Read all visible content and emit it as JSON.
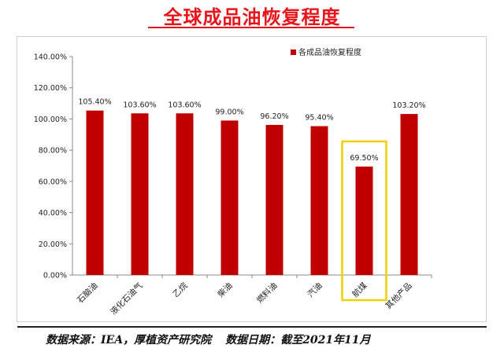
{
  "page_title": "全球成品油恢复程度",
  "footer": {
    "source": "数据来源：IEA，厚植资产研究院",
    "date": "数据日期：截至2021年11月"
  },
  "chart_data": {
    "type": "bar",
    "title": "",
    "xlabel": "",
    "ylabel": "",
    "ylim": [
      0,
      1.4
    ],
    "y_ticks": [
      "0.00%",
      "20.00%",
      "40.00%",
      "60.00%",
      "80.00%",
      "100.00%",
      "120.00%",
      "140.00%"
    ],
    "grid": false,
    "legend": {
      "position": "top-right"
    },
    "categories": [
      "石脑油",
      "液化石油气",
      "乙烷",
      "柴油",
      "燃料油",
      "汽油",
      "航煤",
      "其他产品"
    ],
    "series": [
      {
        "name": "各成品油恢复程度",
        "color": "#c00000",
        "values": [
          1.054,
          1.036,
          1.036,
          0.99,
          0.962,
          0.954,
          0.695,
          1.032
        ],
        "labels": [
          "105.40%",
          "103.60%",
          "103.60%",
          "99.00%",
          "96.20%",
          "95.40%",
          "69.50%",
          "103.20%"
        ]
      }
    ],
    "annotations": [
      {
        "type": "highlight-box",
        "category": "航煤",
        "color": "#f2d100"
      }
    ]
  }
}
